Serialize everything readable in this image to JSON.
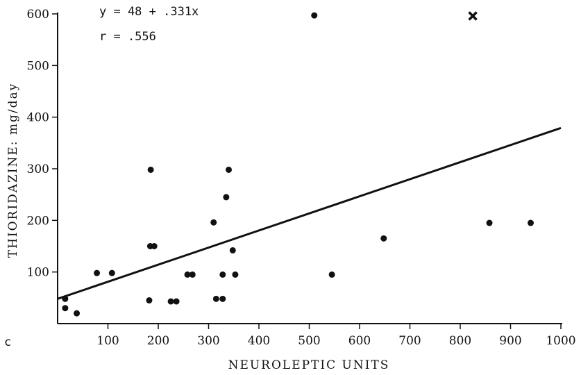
{
  "chart_data": {
    "type": "scatter",
    "xlabel": "NEUROLEPTIC UNITS",
    "ylabel": "THIORIDAZINE: mg/day",
    "panel_label": "c",
    "xlim": [
      0,
      1000
    ],
    "ylim": [
      0,
      600
    ],
    "x_ticks": [
      100,
      200,
      300,
      400,
      500,
      600,
      700,
      800,
      900,
      1000
    ],
    "y_ticks": [
      100,
      200,
      300,
      400,
      500,
      600
    ],
    "annotations": [
      "y = 48 + .331x",
      "r = .556"
    ],
    "regression": {
      "intercept": 48,
      "slope": 0.331
    },
    "points": [
      {
        "x": 15,
        "y": 48
      },
      {
        "x": 15,
        "y": 30
      },
      {
        "x": 38,
        "y": 20
      },
      {
        "x": 78,
        "y": 98
      },
      {
        "x": 108,
        "y": 98
      },
      {
        "x": 182,
        "y": 45
      },
      {
        "x": 184,
        "y": 150
      },
      {
        "x": 185,
        "y": 298
      },
      {
        "x": 192,
        "y": 150
      },
      {
        "x": 225,
        "y": 43
      },
      {
        "x": 236,
        "y": 43
      },
      {
        "x": 258,
        "y": 95
      },
      {
        "x": 268,
        "y": 95
      },
      {
        "x": 310,
        "y": 196
      },
      {
        "x": 315,
        "y": 48
      },
      {
        "x": 328,
        "y": 48
      },
      {
        "x": 328,
        "y": 95
      },
      {
        "x": 335,
        "y": 245
      },
      {
        "x": 340,
        "y": 298
      },
      {
        "x": 348,
        "y": 142
      },
      {
        "x": 353,
        "y": 95
      },
      {
        "x": 510,
        "y": 597
      },
      {
        "x": 545,
        "y": 95
      },
      {
        "x": 648,
        "y": 165
      },
      {
        "x": 858,
        "y": 195
      },
      {
        "x": 940,
        "y": 195
      }
    ],
    "outliers": [
      {
        "x": 825,
        "y": 596,
        "marker": "x"
      }
    ]
  }
}
